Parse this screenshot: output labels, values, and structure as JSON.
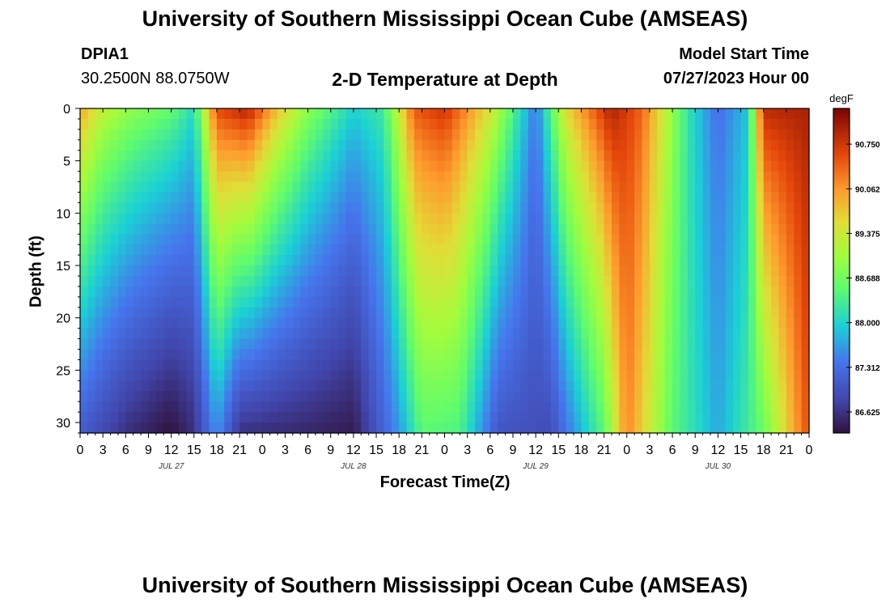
{
  "header": {
    "title": "University of Southern Mississippi Ocean Cube (AMSEAS)",
    "station": "DPIA1",
    "coords": "30.2500N  88.0750W",
    "plot_title": "2-D Temperature at Depth",
    "model_start_label": "Model Start Time",
    "model_start_value": "07/27/2023 Hour 00"
  },
  "footer": {
    "title": "University of Southern Mississippi Ocean Cube (AMSEAS)"
  },
  "chart_data": {
    "type": "heatmap",
    "title": "2-D Temperature at Depth",
    "xlabel": "Forecast Time(Z)",
    "ylabel": "Depth (ft)",
    "x_range_hours": [
      0,
      96
    ],
    "ylim": [
      0,
      31
    ],
    "y_ticks": [
      "0",
      "5",
      "10",
      "15",
      "20",
      "25",
      "30"
    ],
    "y_tick_values": [
      0,
      5,
      10,
      15,
      20,
      25,
      30
    ],
    "x_tick_labels": [
      "0",
      "3",
      "6",
      "9",
      "12",
      "15",
      "18",
      "21",
      "0",
      "3",
      "6",
      "9",
      "12",
      "15",
      "18",
      "21",
      "0",
      "3",
      "6",
      "9",
      "12",
      "15",
      "18",
      "21",
      "0",
      "3",
      "6",
      "9",
      "12",
      "15",
      "18",
      "21",
      "0"
    ],
    "date_labels": [
      {
        "text": "JUL 27",
        "hour": 12
      },
      {
        "text": "JUL 28",
        "hour": 36
      },
      {
        "text": "JUL 29",
        "hour": 60
      },
      {
        "text": "JUL 30",
        "hour": 84
      }
    ],
    "colorbar": {
      "unit": "degF",
      "min": 86.3,
      "max": 91.3,
      "tick_values": [
        86.625,
        87.312,
        88.0,
        88.688,
        89.375,
        90.062,
        90.75
      ],
      "tick_labels": [
        "86.625",
        "87.312",
        "88.000",
        "88.688",
        "89.375",
        "90.062",
        "90.750"
      ]
    },
    "surface_temps_degF": [
      {
        "hour": 0,
        "value": 90.0
      },
      {
        "hour": 3,
        "value": 89.3
      },
      {
        "hour": 7,
        "value": 88.9
      },
      {
        "hour": 12,
        "value": 88.6
      },
      {
        "hour": 15,
        "value": 88.1
      },
      {
        "hour": 18,
        "value": 90.6
      },
      {
        "hour": 22,
        "value": 91.0
      },
      {
        "hour": 26,
        "value": 89.8
      },
      {
        "hour": 30,
        "value": 88.9
      },
      {
        "hour": 36,
        "value": 88.0
      },
      {
        "hour": 40,
        "value": 88.3
      },
      {
        "hour": 44,
        "value": 90.5
      },
      {
        "hour": 48,
        "value": 90.8
      },
      {
        "hour": 54,
        "value": 89.5
      },
      {
        "hour": 60,
        "value": 87.4
      },
      {
        "hour": 64,
        "value": 89.6
      },
      {
        "hour": 70,
        "value": 91.0
      },
      {
        "hour": 74,
        "value": 90.4
      },
      {
        "hour": 80,
        "value": 88.2
      },
      {
        "hour": 84,
        "value": 87.3
      },
      {
        "hour": 88,
        "value": 87.9
      },
      {
        "hour": 90,
        "value": 90.9
      },
      {
        "hour": 96,
        "value": 91.0
      }
    ],
    "bottom_temps_degF": [
      {
        "hour": 0,
        "value": 87.1
      },
      {
        "hour": 6,
        "value": 86.6
      },
      {
        "hour": 12,
        "value": 86.3
      },
      {
        "hour": 15,
        "value": 86.6
      },
      {
        "hour": 18,
        "value": 87.6
      },
      {
        "hour": 21,
        "value": 86.6
      },
      {
        "hour": 30,
        "value": 86.5
      },
      {
        "hour": 36,
        "value": 86.4
      },
      {
        "hour": 42,
        "value": 87.6
      },
      {
        "hour": 45,
        "value": 88.5
      },
      {
        "hour": 50,
        "value": 88.4
      },
      {
        "hour": 55,
        "value": 87.0
      },
      {
        "hour": 62,
        "value": 86.9
      },
      {
        "hour": 69,
        "value": 88.5
      },
      {
        "hour": 72,
        "value": 90.2
      },
      {
        "hour": 78,
        "value": 88.5
      },
      {
        "hour": 84,
        "value": 87.7
      },
      {
        "hour": 90,
        "value": 88.6
      },
      {
        "hour": 96,
        "value": 90.6
      }
    ]
  }
}
